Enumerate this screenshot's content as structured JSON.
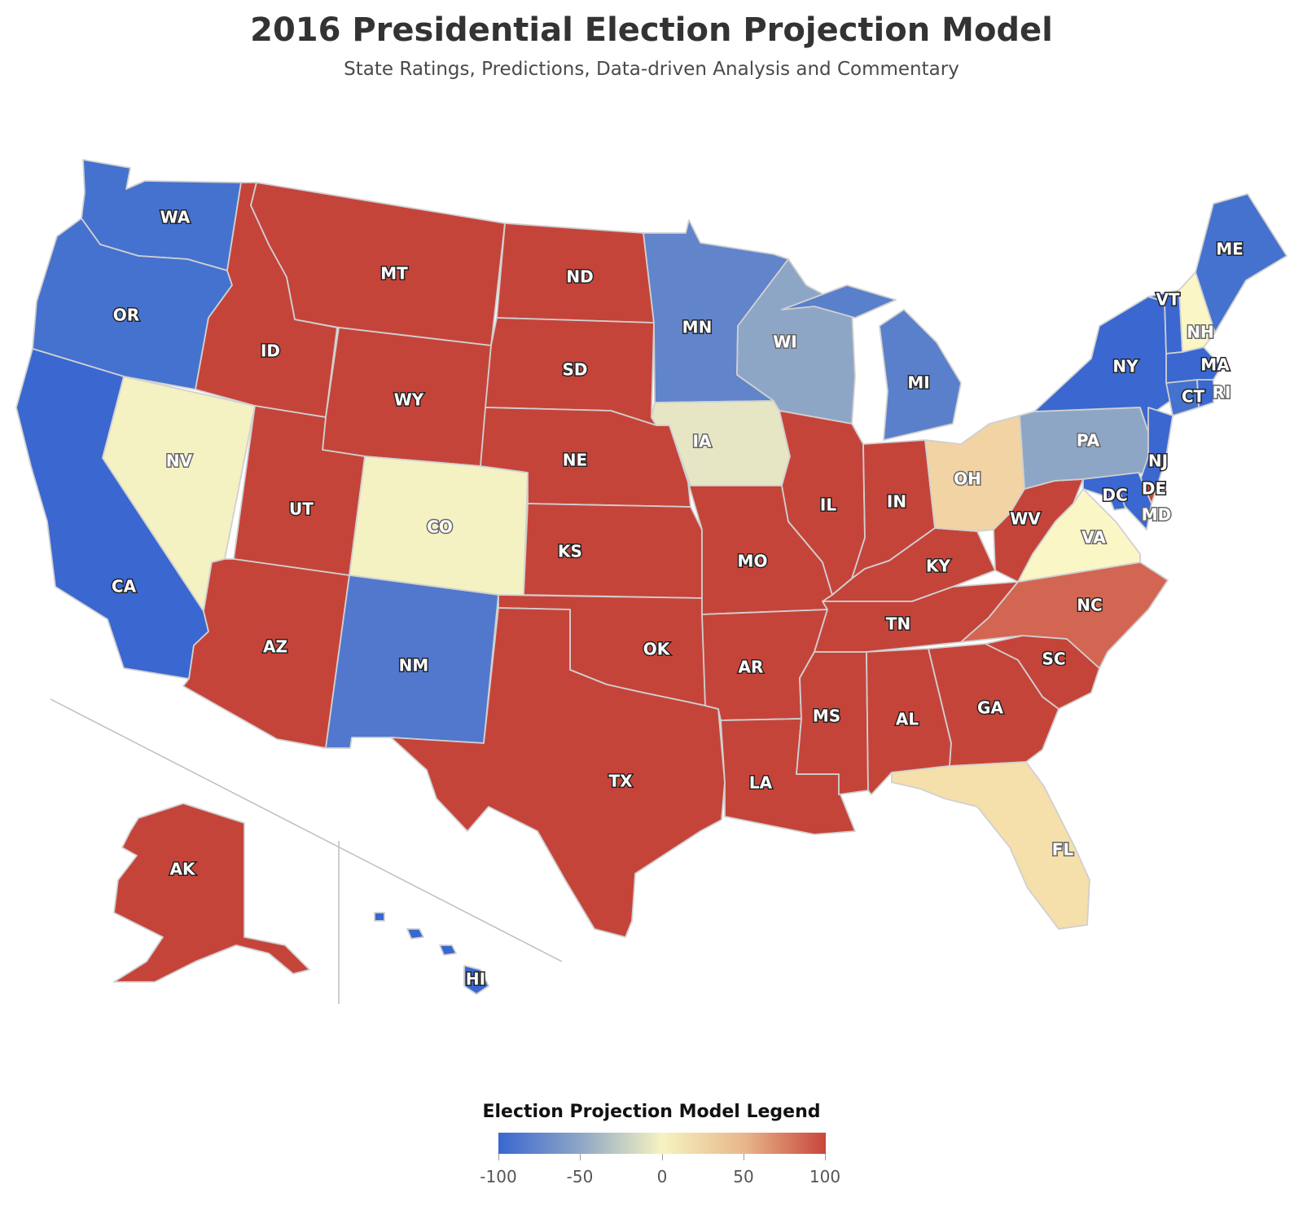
{
  "title": "2016 Presidential Election Projection Model",
  "subtitle": "State Ratings, Predictions, Data-driven Analysis and Commentary",
  "legend": {
    "title": "Election Projection Model Legend",
    "ticks": [
      "-100",
      "-50",
      "0",
      "50",
      "100"
    ],
    "colors": [
      "#3a67d0",
      "#8ea6c6",
      "#f6f3c0",
      "#e8b78a",
      "#c8463b"
    ]
  },
  "states": [
    {
      "abbr": "WA",
      "color": "#4572cf"
    },
    {
      "abbr": "OR",
      "color": "#4572cf"
    },
    {
      "abbr": "CA",
      "color": "#3a67d0"
    },
    {
      "abbr": "NV",
      "color": "#f4f1c2"
    },
    {
      "abbr": "ID",
      "color": "#c5443a"
    },
    {
      "abbr": "MT",
      "color": "#c5443a"
    },
    {
      "abbr": "WY",
      "color": "#c5443a"
    },
    {
      "abbr": "UT",
      "color": "#c5443a"
    },
    {
      "abbr": "AZ",
      "color": "#c5443a"
    },
    {
      "abbr": "CO",
      "color": "#f4f1c2"
    },
    {
      "abbr": "NM",
      "color": "#5178cc"
    },
    {
      "abbr": "ND",
      "color": "#c5443a"
    },
    {
      "abbr": "SD",
      "color": "#c5443a"
    },
    {
      "abbr": "NE",
      "color": "#c5443a"
    },
    {
      "abbr": "KS",
      "color": "#c5443a"
    },
    {
      "abbr": "OK",
      "color": "#c5443a"
    },
    {
      "abbr": "TX",
      "color": "#c5443a"
    },
    {
      "abbr": "MN",
      "color": "#6184cb"
    },
    {
      "abbr": "IA",
      "color": "#e6e6c4"
    },
    {
      "abbr": "MO",
      "color": "#c5443a"
    },
    {
      "abbr": "AR",
      "color": "#c5443a"
    },
    {
      "abbr": "LA",
      "color": "#c5443a"
    },
    {
      "abbr": "WI",
      "color": "#8ea6c6"
    },
    {
      "abbr": "IL",
      "color": "#c5443a"
    },
    {
      "abbr": "MS",
      "color": "#c5443a"
    },
    {
      "abbr": "MI",
      "color": "#5a80cc"
    },
    {
      "abbr": "IN",
      "color": "#c5443a"
    },
    {
      "abbr": "KY",
      "color": "#c5443a"
    },
    {
      "abbr": "TN",
      "color": "#c5443a"
    },
    {
      "abbr": "AL",
      "color": "#c5443a"
    },
    {
      "abbr": "GA",
      "color": "#c5443a"
    },
    {
      "abbr": "FL",
      "color": "#f5dfab"
    },
    {
      "abbr": "SC",
      "color": "#c5443a"
    },
    {
      "abbr": "NC",
      "color": "#d36652"
    },
    {
      "abbr": "OH",
      "color": "#f2d3a3"
    },
    {
      "abbr": "WV",
      "color": "#c5443a"
    },
    {
      "abbr": "VA",
      "color": "#fbf6c5"
    },
    {
      "abbr": "PA",
      "color": "#8ea6c6"
    },
    {
      "abbr": "NY",
      "color": "#3a67d0"
    },
    {
      "abbr": "VT",
      "color": "#3a67d0"
    },
    {
      "abbr": "NH",
      "color": "#fbf6c5"
    },
    {
      "abbr": "ME",
      "color": "#4572cf"
    },
    {
      "abbr": "MA",
      "color": "#3a67d0"
    },
    {
      "abbr": "CT",
      "color": "#4572cf"
    },
    {
      "abbr": "RI",
      "color": "#3a67d0"
    },
    {
      "abbr": "NJ",
      "color": "#3a67d0"
    },
    {
      "abbr": "DE",
      "color": "#c5443a"
    },
    {
      "abbr": "MD",
      "color": "#3a67d0"
    },
    {
      "abbr": "DC",
      "color": "#3a67d0"
    },
    {
      "abbr": "AK",
      "color": "#c5443a"
    },
    {
      "abbr": "HI",
      "color": "#3a67d0"
    }
  ]
}
